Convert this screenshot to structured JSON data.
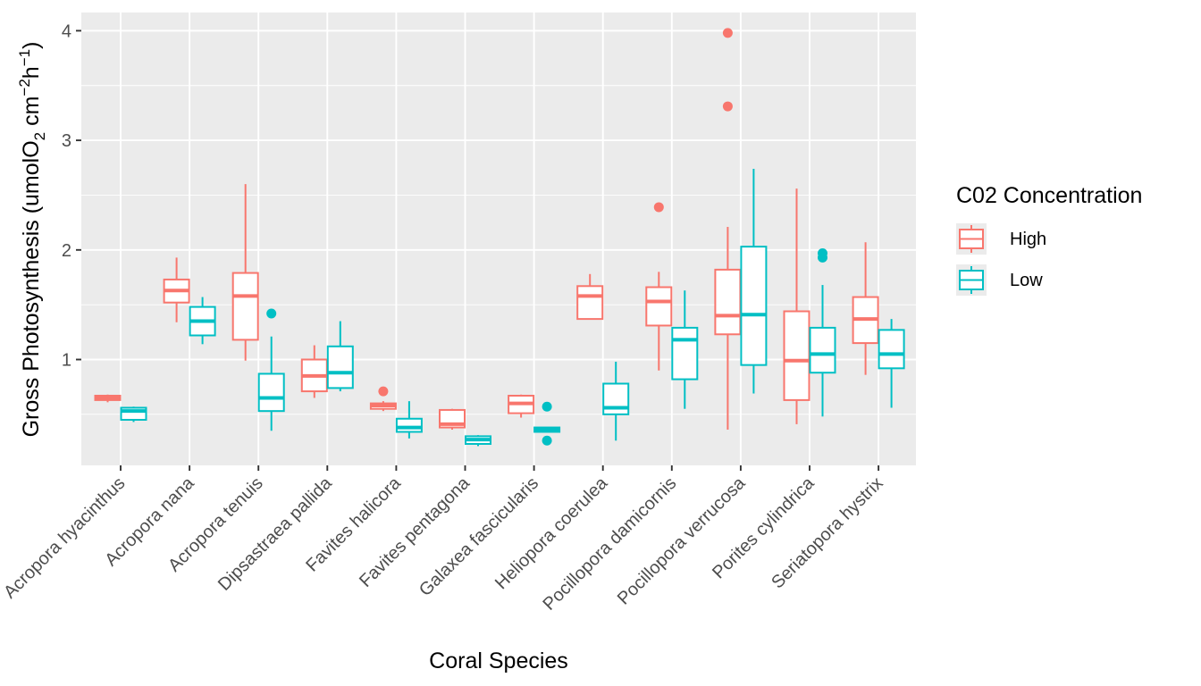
{
  "chart_data": {
    "type": "boxplot",
    "xlabel": "Coral Species",
    "ylabel_prefix": "Gross Photosynthesis (umolO",
    "ylabel_sub": "2",
    "ylabel_mid": " cm",
    "ylabel_sup1": "−2",
    "ylabel_h": "h",
    "ylabel_sup2": "−1",
    "ylabel_suffix": ")",
    "ylim": [
      0.1,
      4.1
    ],
    "yticks": [
      1,
      2,
      3,
      4
    ],
    "ytick_labels": [
      "1",
      "2",
      "3",
      "4"
    ],
    "grid": true,
    "legend": {
      "title": "C02 Concentration",
      "position": "right",
      "entries": [
        {
          "label": "High",
          "color": "#F8766D"
        },
        {
          "label": "Low",
          "color": "#00BFC4"
        }
      ]
    },
    "categories": [
      "Acropora hyacinthus",
      "Acropora nana",
      "Acropora tenuis",
      "Dipsastraea pallida",
      "Favites halicora",
      "Favites pentagona",
      "Galaxea fascicularis",
      "Heliopora coerulea",
      "Pocillopora damicornis",
      "Pocillopora verrucosa",
      "Porites cylindrica",
      "Seriatopora hystrix"
    ],
    "series": [
      {
        "name": "High",
        "color": "#F8766D",
        "boxes": [
          {
            "min": 0.61,
            "q1": 0.63,
            "median": 0.65,
            "q3": 0.67,
            "max": 0.68,
            "outliers": []
          },
          {
            "min": 1.34,
            "q1": 1.52,
            "median": 1.63,
            "q3": 1.73,
            "max": 1.93,
            "outliers": []
          },
          {
            "min": 0.99,
            "q1": 1.18,
            "median": 1.58,
            "q3": 1.79,
            "max": 2.6,
            "outliers": []
          },
          {
            "min": 0.65,
            "q1": 0.71,
            "median": 0.85,
            "q3": 1.0,
            "max": 1.13,
            "outliers": []
          },
          {
            "min": 0.53,
            "q1": 0.55,
            "median": 0.58,
            "q3": 0.6,
            "max": 0.62,
            "outliers": [
              0.71
            ]
          },
          {
            "min": 0.36,
            "q1": 0.38,
            "median": 0.41,
            "q3": 0.54,
            "max": 0.55,
            "outliers": []
          },
          {
            "min": 0.47,
            "q1": 0.51,
            "median": 0.6,
            "q3": 0.67,
            "max": 0.68,
            "outliers": []
          },
          {
            "min": 1.37,
            "q1": 1.37,
            "median": 1.58,
            "q3": 1.67,
            "max": 1.78,
            "outliers": []
          },
          {
            "min": 0.9,
            "q1": 1.31,
            "median": 1.53,
            "q3": 1.66,
            "max": 1.8,
            "outliers": [
              2.39
            ]
          },
          {
            "min": 0.36,
            "q1": 1.23,
            "median": 1.4,
            "q3": 1.82,
            "max": 2.21,
            "outliers": [
              3.31,
              3.98
            ]
          },
          {
            "min": 0.41,
            "q1": 0.63,
            "median": 0.99,
            "q3": 1.44,
            "max": 2.56,
            "outliers": []
          },
          {
            "min": 0.86,
            "q1": 1.15,
            "median": 1.37,
            "q3": 1.57,
            "max": 2.07,
            "outliers": []
          }
        ]
      },
      {
        "name": "Low",
        "color": "#00BFC4",
        "boxes": [
          {
            "min": 0.43,
            "q1": 0.45,
            "median": 0.53,
            "q3": 0.56,
            "max": 0.57,
            "outliers": []
          },
          {
            "min": 1.14,
            "q1": 1.22,
            "median": 1.35,
            "q3": 1.48,
            "max": 1.57,
            "outliers": []
          },
          {
            "min": 0.35,
            "q1": 0.53,
            "median": 0.65,
            "q3": 0.87,
            "max": 1.21,
            "outliers": [
              1.42
            ]
          },
          {
            "min": 0.71,
            "q1": 0.74,
            "median": 0.88,
            "q3": 1.12,
            "max": 1.35,
            "outliers": []
          },
          {
            "min": 0.28,
            "q1": 0.34,
            "median": 0.38,
            "q3": 0.46,
            "max": 0.62,
            "outliers": []
          },
          {
            "min": 0.21,
            "q1": 0.23,
            "median": 0.27,
            "q3": 0.3,
            "max": 0.31,
            "outliers": []
          },
          {
            "min": 0.34,
            "q1": 0.34,
            "median": 0.36,
            "q3": 0.38,
            "max": 0.38,
            "outliers": [
              0.26,
              0.57
            ]
          },
          {
            "min": 0.26,
            "q1": 0.5,
            "median": 0.56,
            "q3": 0.78,
            "max": 0.98,
            "outliers": []
          },
          {
            "min": 0.55,
            "q1": 0.82,
            "median": 1.18,
            "q3": 1.29,
            "max": 1.63,
            "outliers": []
          },
          {
            "min": 0.69,
            "q1": 0.95,
            "median": 1.41,
            "q3": 2.03,
            "max": 2.74,
            "outliers": []
          },
          {
            "min": 0.48,
            "q1": 0.88,
            "median": 1.05,
            "q3": 1.29,
            "max": 1.68,
            "outliers": [
              1.93,
              1.97
            ]
          },
          {
            "min": 0.56,
            "q1": 0.92,
            "median": 1.05,
            "q3": 1.27,
            "max": 1.37,
            "outliers": []
          }
        ]
      }
    ]
  }
}
